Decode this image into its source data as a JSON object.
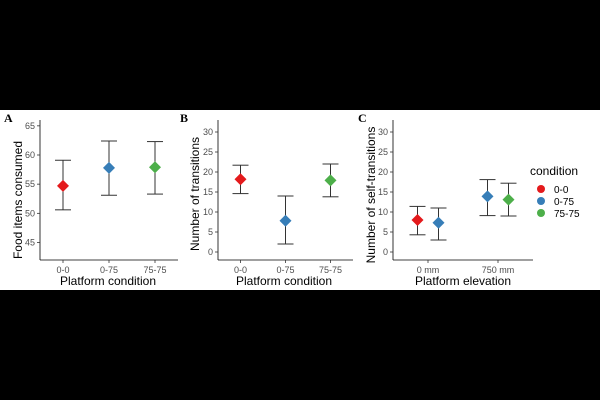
{
  "legend": {
    "title": "condition",
    "items": [
      {
        "label": "0-0",
        "color": "#E41A1C"
      },
      {
        "label": "0-75",
        "color": "#377EB8"
      },
      {
        "label": "75-75",
        "color": "#4DAF4A"
      }
    ]
  },
  "chart_data": [
    {
      "panel": "A",
      "type": "scatter",
      "categories": [
        "0-0",
        "0-75",
        "75-75"
      ],
      "xlabel": "Platform condition",
      "ylabel": "Food items consumed",
      "ylim": [
        42,
        66
      ],
      "yticks": [
        45,
        50,
        55,
        60,
        65
      ],
      "series": [
        {
          "name": "0-0",
          "color": "#E41A1C",
          "x": "0-0",
          "mean": 54.7,
          "low": 50.6,
          "high": 59.1
        },
        {
          "name": "0-75",
          "color": "#377EB8",
          "x": "0-75",
          "mean": 57.8,
          "low": 53.1,
          "high": 62.4
        },
        {
          "name": "75-75",
          "color": "#4DAF4A",
          "x": "75-75",
          "mean": 57.9,
          "low": 53.3,
          "high": 62.3
        }
      ]
    },
    {
      "panel": "B",
      "type": "scatter",
      "categories": [
        "0-0",
        "0-75",
        "75-75"
      ],
      "xlabel": "Platform condition",
      "ylabel": "Number of transitions",
      "ylim": [
        -2,
        33
      ],
      "yticks": [
        0,
        5,
        10,
        15,
        20,
        25,
        30
      ],
      "series": [
        {
          "name": "0-0",
          "color": "#E41A1C",
          "x": "0-0",
          "mean": 18.2,
          "low": 14.6,
          "high": 21.7
        },
        {
          "name": "0-75",
          "color": "#377EB8",
          "x": "0-75",
          "mean": 7.8,
          "low": 2.0,
          "high": 14.0
        },
        {
          "name": "75-75",
          "color": "#4DAF4A",
          "x": "75-75",
          "mean": 17.9,
          "low": 13.8,
          "high": 22.0
        }
      ]
    },
    {
      "panel": "C",
      "type": "scatter",
      "categories": [
        "0 mm",
        "750 mm"
      ],
      "xlabel": "Platform elevation",
      "ylabel": "Number of self-transitions",
      "ylim": [
        -2,
        33
      ],
      "yticks": [
        0,
        5,
        10,
        15,
        20,
        25,
        30
      ],
      "series": [
        {
          "name": "0-0",
          "color": "#E41A1C",
          "x": "0 mm",
          "offset": -0.15,
          "mean": 8.0,
          "low": 4.3,
          "high": 11.4
        },
        {
          "name": "0-75",
          "color": "#377EB8",
          "x": "0 mm",
          "offset": 0.15,
          "mean": 7.3,
          "low": 3.0,
          "high": 11.0
        },
        {
          "name": "0-75",
          "color": "#377EB8",
          "x": "750 mm",
          "offset": -0.15,
          "mean": 13.9,
          "low": 9.1,
          "high": 18.1
        },
        {
          "name": "75-75",
          "color": "#4DAF4A",
          "x": "750 mm",
          "offset": 0.15,
          "mean": 13.1,
          "low": 9.0,
          "high": 17.2
        }
      ]
    }
  ]
}
